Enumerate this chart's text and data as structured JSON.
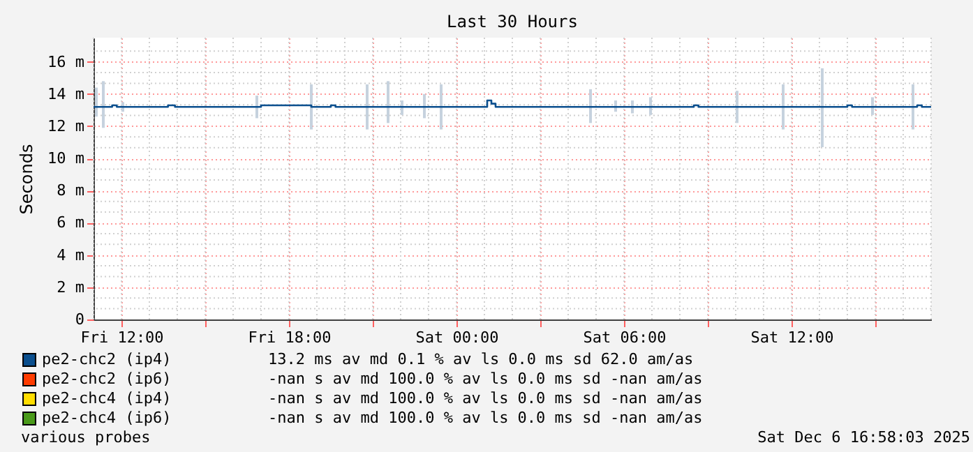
{
  "chart_data": {
    "type": "step",
    "title": "Last 30 Hours",
    "ylabel": "Seconds",
    "xlim": [
      "2025-12-05T11:00",
      "2025-12-06T17:00"
    ],
    "xticks": [
      {
        "value": "2025-12-05T12:00",
        "label": "Fri 12:00"
      },
      {
        "value": "2025-12-05T15:00",
        "label": null
      },
      {
        "value": "2025-12-05T18:00",
        "label": "Fri 18:00"
      },
      {
        "value": "2025-12-05T21:00",
        "label": null
      },
      {
        "value": "2025-12-06T00:00",
        "label": "Sat 00:00"
      },
      {
        "value": "2025-12-06T03:00",
        "label": null
      },
      {
        "value": "2025-12-06T06:00",
        "label": "Sat 06:00"
      },
      {
        "value": "2025-12-06T09:00",
        "label": null
      },
      {
        "value": "2025-12-06T12:00",
        "label": "Sat 12:00"
      },
      {
        "value": "2025-12-06T15:00",
        "label": null
      }
    ],
    "ylim": [
      0,
      17.5
    ],
    "yticks": [
      0,
      {
        "value": 2,
        "label": "2 m"
      },
      {
        "value": 4,
        "label": "4 m"
      },
      {
        "value": 6,
        "label": "6 m"
      },
      {
        "value": 8,
        "label": "8 m"
      },
      {
        "value": 10,
        "label": "10 m"
      },
      {
        "value": 12,
        "label": "12 m"
      },
      {
        "value": 14,
        "label": "14 m"
      },
      {
        "value": 16,
        "label": "16 m"
      }
    ],
    "grid": true,
    "legend": "bottom",
    "marker": "none",
    "line_style": "solid",
    "series": [
      {
        "name": "pe2-chc2 (ip4)",
        "color": "#0b4f8e",
        "x": [
          "2025-12-05T11:00",
          "2025-12-05T11:06",
          "2025-12-05T11:21",
          "2025-12-05T11:40",
          "2025-12-05T11:50",
          "2025-12-05T12:03",
          "2025-12-05T13:40",
          "2025-12-05T13:55",
          "2025-12-05T16:51",
          "2025-12-05T17:00",
          "2025-12-05T18:48",
          "2025-12-05T19:30",
          "2025-12-05T19:40",
          "2025-12-05T20:48",
          "2025-12-05T21:33",
          "2025-12-05T22:03",
          "2025-12-05T22:51",
          "2025-12-05T23:27",
          "2025-12-06T01:00",
          "2025-12-06T01:06",
          "2025-12-06T01:15",
          "2025-12-06T01:24",
          "2025-12-06T04:48",
          "2025-12-06T05:42",
          "2025-12-06T06:18",
          "2025-12-06T06:57",
          "2025-12-06T08:30",
          "2025-12-06T08:40",
          "2025-12-06T10:03",
          "2025-12-06T11:42",
          "2025-12-06T13:06",
          "2025-12-06T14:00",
          "2025-12-06T14:10",
          "2025-12-06T14:54",
          "2025-12-06T16:21",
          "2025-12-06T16:30",
          "2025-12-06T16:40",
          "2025-12-06T17:00"
        ],
        "values": [
          13.2,
          13.2,
          13.2,
          13.3,
          13.2,
          13.2,
          13.3,
          13.2,
          13.2,
          13.3,
          13.2,
          13.3,
          13.2,
          13.2,
          13.2,
          13.2,
          13.2,
          13.2,
          13.2,
          13.6,
          13.4,
          13.2,
          13.2,
          13.2,
          13.2,
          13.2,
          13.3,
          13.2,
          13.2,
          13.2,
          13.2,
          13.3,
          13.2,
          13.2,
          13.2,
          13.3,
          13.2,
          13.2
        ],
        "errors": [
          null,
          [
            12.6,
            14.4
          ],
          [
            11.9,
            14.8
          ],
          null,
          null,
          [
            12.9,
            13.5
          ],
          null,
          null,
          [
            12.5,
            13.9
          ],
          null,
          [
            11.8,
            14.6
          ],
          null,
          null,
          [
            11.8,
            14.6
          ],
          [
            12.2,
            14.8
          ],
          [
            12.7,
            13.6
          ],
          [
            12.5,
            14.0
          ],
          [
            11.8,
            14.6
          ],
          null,
          null,
          null,
          null,
          [
            12.2,
            14.3
          ],
          [
            12.9,
            13.6
          ],
          [
            12.8,
            13.6
          ],
          [
            12.7,
            13.8
          ],
          null,
          null,
          [
            12.2,
            14.2
          ],
          [
            11.8,
            14.6
          ],
          [
            10.7,
            15.6
          ],
          null,
          null,
          [
            12.7,
            13.8
          ],
          [
            11.8,
            14.6
          ],
          null,
          null,
          null
        ]
      },
      {
        "name": "pe2-chc2 (ip6)",
        "color": "#ff3c00"
      },
      {
        "name": "pe2-chc4 (ip4)",
        "color": "#ffdd00"
      },
      {
        "name": "pe2-chc4 (ip6)",
        "color": "#4a9a1a"
      }
    ],
    "annotations": [
      "13.2 ms av md      0.1 % av ls    0.0 ms sd   62.0   am/as",
      "-nan  s av md    100.0 % av ls    0.0 ms sd   -nan   am/as",
      "-nan  s av md    100.0 % av ls    0.0 ms sd   -nan   am/as",
      "-nan  s av md    100.0 % av ls    0.0 ms sd   -nan   am/as",
      "various probes",
      "Sat Dec  6 16:58:03 2025"
    ]
  }
}
